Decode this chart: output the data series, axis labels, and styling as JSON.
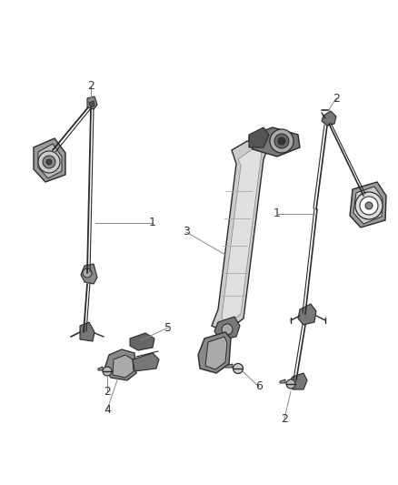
{
  "bg_color": "#ffffff",
  "dark_color": "#2a2a2a",
  "mid_color": "#666666",
  "light_color": "#aaaaaa",
  "label_color": "#333333",
  "leader_color": "#888888",
  "figsize": [
    4.38,
    5.33
  ],
  "dpi": 100
}
